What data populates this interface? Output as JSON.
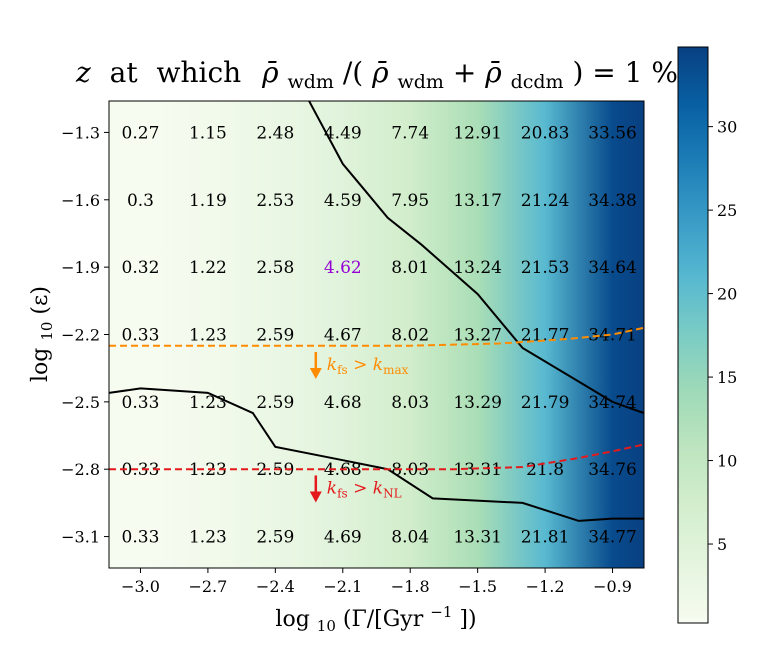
{
  "chart_data": {
    "type": "heatmap",
    "title_parts": {
      "z": "z",
      "at": "at",
      "which": "which",
      "rho": "ρ̄",
      "sub_wdm": "wdm",
      "slash_open": "/(",
      "plus": " + ",
      "sub_dcdm": "dcdm",
      "tail": ") = 1 %"
    },
    "xlabel_parts": {
      "pre": "log",
      "sub": "10",
      "mid": "(Γ/[Gyr",
      "sup": "−1",
      "post": "])"
    },
    "ylabel_parts": {
      "pre": "log",
      "sub": "10",
      "post": "(ε)"
    },
    "x_ticks": [
      "−3.0",
      "−2.7",
      "−2.4",
      "−2.1",
      "−1.8",
      "−1.5",
      "−1.2",
      "−0.9"
    ],
    "y_ticks": [
      "−1.3",
      "−1.6",
      "−1.9",
      "−2.2",
      "−2.5",
      "−2.8",
      "−3.1"
    ],
    "x_tick_values": [
      -3.0,
      -2.7,
      -2.4,
      -2.1,
      -1.8,
      -1.5,
      -1.2,
      -0.9
    ],
    "y_tick_values": [
      -1.3,
      -1.6,
      -1.9,
      -2.2,
      -2.5,
      -2.8,
      -3.1
    ],
    "xlim": [
      -3.14,
      -0.76
    ],
    "ylim": [
      -3.24,
      -1.16
    ],
    "grid": false,
    "colormap": "GnBu",
    "colorbar": {
      "ticks": [
        "5",
        "10",
        "15",
        "20",
        "25",
        "30"
      ],
      "tick_values": [
        5,
        10,
        15,
        20,
        25,
        30
      ],
      "range": [
        0.27,
        34.77
      ]
    },
    "gamma": [
      -3.0,
      -2.7,
      -2.4,
      -2.1,
      -1.8,
      -1.5,
      -1.2,
      -0.9
    ],
    "epsilon": [
      -1.3,
      -1.6,
      -1.9,
      -2.2,
      -2.5,
      -2.8,
      -3.1
    ],
    "cells": [
      [
        "0.27",
        "1.15",
        "2.48",
        "4.49",
        "7.74",
        "12.91",
        "20.83",
        "33.56"
      ],
      [
        "0.3",
        "1.19",
        "2.53",
        "4.59",
        "7.95",
        "13.17",
        "21.24",
        "34.38"
      ],
      [
        "0.32",
        "1.22",
        "2.58",
        "4.62",
        "8.01",
        "13.24",
        "21.53",
        "34.64"
      ],
      [
        "0.33",
        "1.23",
        "2.59",
        "4.67",
        "8.02",
        "13.27",
        "21.77",
        "34.71"
      ],
      [
        "0.33",
        "1.23",
        "2.59",
        "4.68",
        "8.03",
        "13.29",
        "21.79",
        "34.74"
      ],
      [
        "0.33",
        "1.23",
        "2.59",
        "4.68",
        "8.03",
        "13.31",
        "21.8",
        "34.76"
      ],
      [
        "0.33",
        "1.23",
        "2.59",
        "4.69",
        "8.04",
        "13.31",
        "21.81",
        "34.77"
      ]
    ],
    "gradient_values": [
      0.27,
      1.15,
      2.48,
      4.49,
      7.74,
      12.91,
      20.83,
      33.56
    ],
    "highlight_cell": {
      "row": 2,
      "col": 3,
      "color": "#9400d3"
    },
    "contour_upper": [
      [
        -2.25,
        -1.16
      ],
      [
        -2.1,
        -1.44
      ],
      [
        -2.0,
        -1.56
      ],
      [
        -1.9,
        -1.68
      ],
      [
        -1.75,
        -1.8
      ],
      [
        -1.5,
        -2.02
      ],
      [
        -1.3,
        -2.26
      ],
      [
        -1.05,
        -2.41
      ],
      [
        -0.9,
        -2.5
      ],
      [
        -0.76,
        -2.55
      ]
    ],
    "contour_lower": [
      [
        -3.14,
        -2.46
      ],
      [
        -3.0,
        -2.44
      ],
      [
        -2.7,
        -2.46
      ],
      [
        -2.5,
        -2.55
      ],
      [
        -2.4,
        -2.7
      ],
      [
        -2.1,
        -2.76
      ],
      [
        -1.9,
        -2.8
      ],
      [
        -1.7,
        -2.93
      ],
      [
        -1.3,
        -2.95
      ],
      [
        -1.05,
        -3.03
      ],
      [
        -0.9,
        -3.02
      ],
      [
        -0.76,
        -3.02
      ]
    ],
    "line_kmax": {
      "color": "#ff8c00",
      "points": [
        [
          -3.14,
          -2.25
        ],
        [
          -2.5,
          -2.25
        ],
        [
          -1.8,
          -2.25
        ],
        [
          -1.4,
          -2.24
        ],
        [
          -1.1,
          -2.22
        ],
        [
          -0.9,
          -2.2
        ],
        [
          -0.76,
          -2.17
        ]
      ]
    },
    "line_knl": {
      "color": "#e41a1c",
      "points": [
        [
          -3.14,
          -2.8
        ],
        [
          -2.5,
          -2.8
        ],
        [
          -2.0,
          -2.8
        ],
        [
          -1.6,
          -2.8
        ],
        [
          -1.3,
          -2.79
        ],
        [
          -1.05,
          -2.75
        ],
        [
          -0.9,
          -2.72
        ],
        [
          -0.76,
          -2.69
        ]
      ]
    },
    "annotation_kmax": {
      "k": "k",
      "sub1": "fs",
      "gt": " > ",
      "k2": "k",
      "sub2": "max",
      "color": "#ff8c00",
      "x": -2.22,
      "y": -2.26
    },
    "annotation_knl": {
      "k": "k",
      "sub1": "fs",
      "gt": " > ",
      "k2": "k",
      "sub2": "NL",
      "color": "#e41a1c",
      "x": -2.22,
      "y": -2.81
    }
  }
}
